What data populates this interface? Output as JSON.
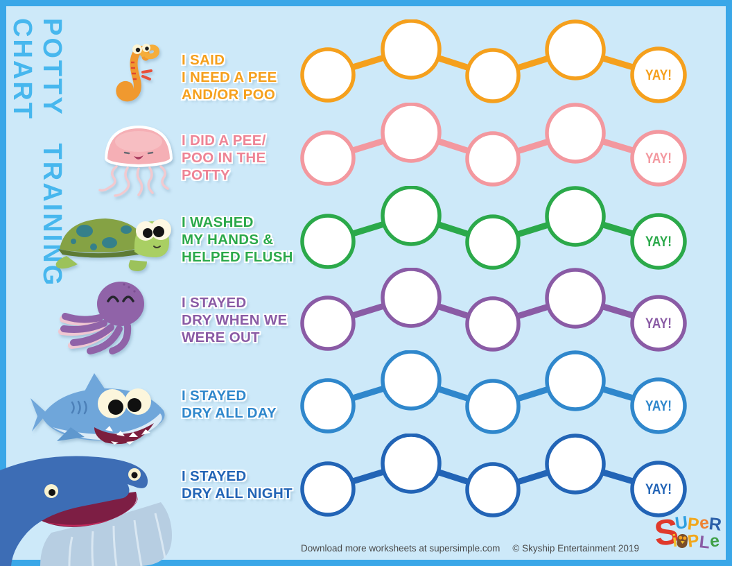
{
  "page": {
    "background_color": "#CDE9F9",
    "frame_color": "#3AA7E8"
  },
  "title": {
    "text": "POTTY TRAINING CHART",
    "color": "#47B7EE"
  },
  "rows": [
    {
      "animal_icon": "seahorse-icon",
      "label_lines": [
        "I SAID",
        "I NEED A PEE",
        "AND/OR POO"
      ],
      "color": "#F5A01D",
      "yay_label": "YAY!",
      "circle_count": 5
    },
    {
      "animal_icon": "jellyfish-icon",
      "label_lines": [
        "I DID A PEE/",
        "POO IN THE",
        "POTTY"
      ],
      "color": "#F3989F",
      "label_color": "#EE8495",
      "yay_label": "YAY!",
      "circle_count": 5
    },
    {
      "animal_icon": "turtle-icon",
      "label_lines": [
        "I WASHED",
        "MY HANDS &",
        "HELPED FLUSH"
      ],
      "color": "#2BA94A",
      "yay_label": "YAY!",
      "circle_count": 5
    },
    {
      "animal_icon": "octopus-icon",
      "label_lines": [
        "I STAYED",
        "DRY WHEN WE",
        "WERE OUT"
      ],
      "color": "#8A5BA5",
      "yay_label": "YAY!",
      "circle_count": 5
    },
    {
      "animal_icon": "shark-icon",
      "label_lines": [
        "I STAYED",
        "DRY ALL DAY"
      ],
      "color": "#2F87CC",
      "yay_label": "YAY!",
      "circle_count": 5
    },
    {
      "animal_icon": null,
      "label_lines": [
        "I STAYED",
        "DRY ALL NIGHT"
      ],
      "color": "#2264B6",
      "yay_label": "YAY!",
      "circle_count": 5
    }
  ],
  "decor_icon": "whale-icon",
  "footer": {
    "download_text": "Download more worksheets at supersimple.com",
    "copyright": "© Skyship Entertainment 2019"
  },
  "logo": {
    "name": "Super Simple",
    "big_letter": {
      "ch": "S",
      "color": "#E0392B"
    },
    "word1": [
      {
        "ch": "U",
        "color": "#2D9FE0"
      },
      {
        "ch": "P",
        "color": "#F2A71B"
      },
      {
        "ch": "e",
        "color": "#EF8232"
      },
      {
        "ch": "R",
        "color": "#2B5FA8"
      }
    ],
    "word2": [
      {
        "ch": "i",
        "color": "#F2C02B"
      },
      {
        "ch": "owl",
        "color": "#7A4E2A",
        "owl": true
      },
      {
        "ch": "P",
        "color": "#F2A71B"
      },
      {
        "ch": "L",
        "color": "#8A5CA5"
      },
      {
        "ch": "e",
        "color": "#3FA047"
      }
    ]
  }
}
